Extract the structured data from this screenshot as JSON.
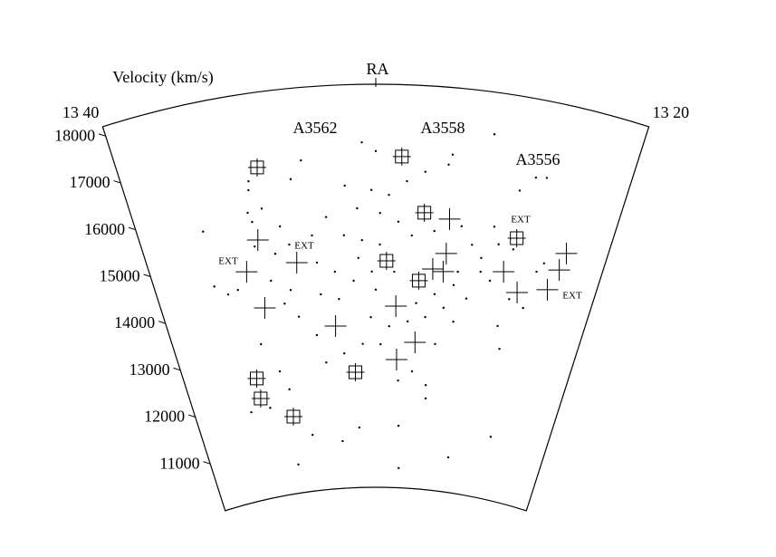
{
  "chart_data": {
    "type": "wedge",
    "xlabel": "RA",
    "ylabel": "Velocity (km/s)",
    "xlim": [
      13.6667,
      13.3333
    ],
    "xticks": [
      {
        "value": 13.6667,
        "label": "13 40"
      },
      {
        "value": 13.3333,
        "label": "13 20"
      }
    ],
    "ylim": [
      10000,
      18200
    ],
    "yticks": [
      11000,
      12000,
      13000,
      14000,
      15000,
      16000,
      17000,
      18000
    ],
    "annotations": [
      "A3562",
      "A3558",
      "A3556",
      "EXT",
      "EXT",
      "EXT",
      "EXT"
    ],
    "color": "#000000",
    "series": [
      {
        "marker": "dot",
        "x": [
          13.509,
          13.5,
          13.549,
          13.425,
          13.452,
          13.45,
          13.557,
          13.586,
          13.622,
          13.394,
          13.403,
          13.521,
          13.503,
          13.491,
          13.479,
          13.467,
          13.513,
          13.497,
          13.484,
          13.535,
          13.546,
          13.523,
          13.51,
          13.474,
          13.458,
          13.439,
          13.43,
          13.422,
          13.44,
          13.454,
          13.468,
          13.5,
          13.517,
          13.531,
          13.544,
          13.568,
          13.574,
          13.58,
          13.606,
          13.623,
          13.614,
          13.587,
          13.579,
          13.563,
          13.504,
          13.489,
          13.474,
          13.46,
          13.446,
          13.496,
          13.48,
          13.468,
          13.455,
          13.511,
          13.527,
          13.543,
          13.549,
          13.562,
          13.572,
          13.416,
          13.411,
          13.396,
          13.384,
          13.401,
          13.396,
          13.413,
          13.421,
          13.4,
          13.38,
          13.376,
          13.387,
          13.476,
          13.426,
          13.388,
          13.533,
          13.516,
          13.58,
          13.598,
          13.562,
          13.596,
          13.584,
          13.578,
          13.566,
          13.438,
          13.429,
          13.437,
          13.45,
          13.454,
          13.503,
          13.513,
          13.497,
          13.486,
          13.529,
          13.543,
          13.589,
          13.588,
          13.585,
          13.616,
          13.478
        ],
        "y": [
          17020,
          16840,
          16720,
          17350,
          16630,
          16840,
          16360,
          16250,
          15600,
          16620,
          16300,
          16150,
          16050,
          15950,
          16240,
          16450,
          15680,
          15580,
          15410,
          15530,
          15180,
          15140,
          15030,
          15140,
          15260,
          15410,
          15060,
          14820,
          14200,
          13980,
          13770,
          14020,
          14210,
          14410,
          14620,
          15430,
          14890,
          14360,
          14290,
          14460,
          14240,
          15600,
          15840,
          15040,
          13460,
          13280,
          13390,
          13500,
          13720,
          12910,
          12180,
          12380,
          12120,
          12920,
          12740,
          12580,
          13150,
          13560,
          13860,
          15490,
          15150,
          14090,
          13970,
          13510,
          13060,
          14390,
          14540,
          15100,
          14750,
          14950,
          16660,
          10400,
          10710,
          11270,
          10960,
          11220,
          10580,
          11810,
          11140,
          13120,
          12510,
          12120,
          14120,
          14480,
          13960,
          13460,
          12970,
          11850,
          14390,
          14670,
          14940,
          14390,
          13850,
          13970,
          15800,
          15100,
          16430,
          11800,
          11260
        ]
      },
      {
        "marker": "cross",
        "x": [
          13.585,
          13.597,
          13.559,
          13.588,
          13.533,
          13.484,
          13.482,
          13.467,
          13.448,
          13.448,
          13.457,
          13.449,
          13.404,
          13.391,
          13.369,
          13.364,
          13.362
        ],
        "y": [
          15219,
          14620,
          14657,
          13832,
          13306,
          13692,
          12606,
          12973,
          15529,
          14825,
          14488,
          14453,
          14618,
          14254,
          14445,
          14894,
          15256
        ]
      },
      {
        "marker": "boxed-cross",
        "x": [
          13.578,
          13.483,
          13.466,
          13.399,
          13.492,
          13.467,
          13.518,
          13.605,
          13.605,
          13.578
        ],
        "y": [
          16681,
          16736,
          15616,
          15337,
          14609,
          14230,
          12348,
          12451,
          12035,
          11559
        ]
      }
    ]
  }
}
